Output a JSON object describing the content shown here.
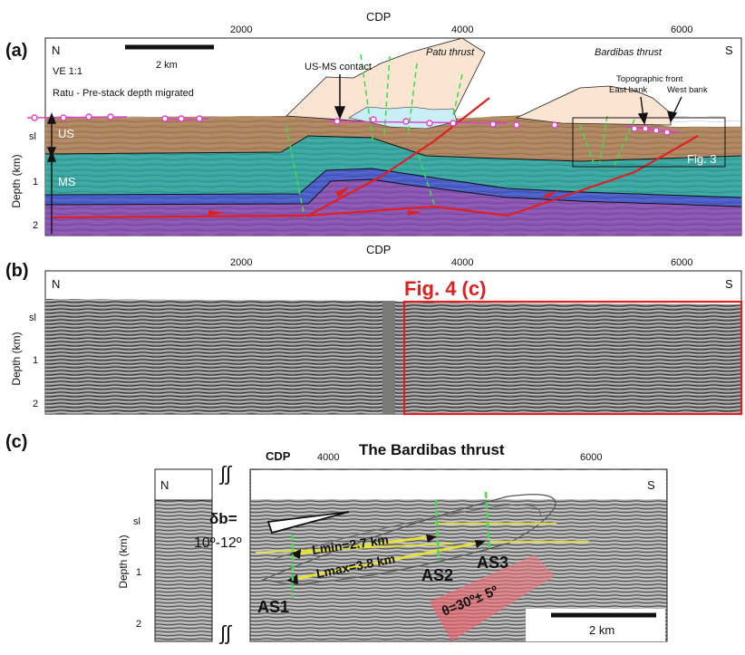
{
  "panel_a": {
    "label": "(a)",
    "cdp_title": "CDP",
    "cdp_ticks": [
      "2000",
      "4000",
      "6000"
    ],
    "north": "N",
    "south": "S",
    "scale_bar": "2 km",
    "ve": "VE 1:1",
    "method": "Ratu - Pre-stack depth migrated",
    "us_ms_contact": "US-MS contact",
    "patu_thrust": "Patu thrust",
    "bardibas_thrust": "Bardibas thrust",
    "topographic_front": "Topographic front",
    "east_bank": "East bank",
    "west_bank": "West bank",
    "fig3": "Fig. 3",
    "us": "US",
    "ms": "MS",
    "depth_axis": "Depth (km)",
    "depth_ticks": [
      "sl",
      "1",
      "2"
    ]
  },
  "panel_b": {
    "label": "(b)",
    "cdp_title": "CDP",
    "cdp_ticks": [
      "2000",
      "4000",
      "6000"
    ],
    "north": "N",
    "south": "S",
    "fig4c": "Fig. 4 (c)",
    "depth_axis": "Depth (km)",
    "depth_ticks": [
      "sl",
      "1",
      "2"
    ]
  },
  "panel_c": {
    "label": "(c)",
    "title": "The Bardibas thrust",
    "cdp_title": "CDP",
    "cdp_ticks": [
      "4000",
      "6000"
    ],
    "north": "N",
    "south": "S",
    "break_symbol": "∫∫",
    "delta_b_label": "δb=",
    "delta_b_value": "10º-12º",
    "lmin": "Lmin=2.7 km",
    "lmax": "Lmax=3.8 km",
    "as1": "AS1",
    "as2": "AS2",
    "as3": "AS3",
    "theta": "θ=30º± 5º",
    "scale_bar": "2 km",
    "depth_axis": "Depth (km)",
    "depth_ticks": [
      "sl",
      "1",
      "2"
    ]
  }
}
